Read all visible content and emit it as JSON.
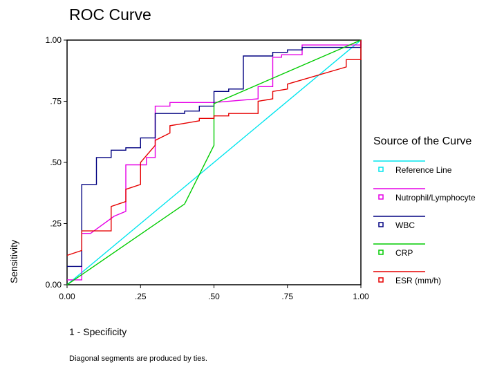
{
  "chart_data": {
    "type": "line",
    "title": "ROC Curve",
    "xlabel": "1 - Specificity",
    "ylabel": "Sensitivity",
    "footnote": "Diagonal segments are produced by ties.",
    "xlim": [
      0,
      1
    ],
    "ylim": [
      0,
      1
    ],
    "x_ticks": [
      {
        "value": 0.0,
        "label": "0.00"
      },
      {
        "value": 0.25,
        "label": ".25"
      },
      {
        "value": 0.5,
        "label": ".50"
      },
      {
        "value": 0.75,
        "label": ".75"
      },
      {
        "value": 1.0,
        "label": "1.00"
      }
    ],
    "y_ticks": [
      {
        "value": 0.0,
        "label": "0.00"
      },
      {
        "value": 0.25,
        "label": ".25"
      },
      {
        "value": 0.5,
        "label": ".50"
      },
      {
        "value": 0.75,
        "label": ".75"
      },
      {
        "value": 1.0,
        "label": "1.00"
      }
    ],
    "legend_title": "Source of the Curve",
    "legend_position": "right",
    "series": [
      {
        "name": "Reference Line",
        "color": "#00e5ee",
        "x": [
          0,
          1
        ],
        "y": [
          0,
          1
        ]
      },
      {
        "name": "Nutrophil/Lymphocyte",
        "color": "#e600e6",
        "x": [
          0,
          0.05,
          0.05,
          0.08,
          0.16,
          0.16,
          0.2,
          0.2,
          0.27,
          0.27,
          0.3,
          0.3,
          0.35,
          0.35,
          0.5,
          0.5,
          0.65,
          0.65,
          0.7,
          0.7,
          0.73,
          0.73,
          0.8,
          0.8,
          1,
          1
        ],
        "y": [
          0.02,
          0.02,
          0.21,
          0.21,
          0.28,
          0.28,
          0.3,
          0.49,
          0.49,
          0.52,
          0.52,
          0.73,
          0.73,
          0.745,
          0.745,
          0.745,
          0.76,
          0.81,
          0.81,
          0.93,
          0.93,
          0.94,
          0.94,
          0.98,
          0.98,
          1
        ]
      },
      {
        "name": "WBC",
        "color": "#000080",
        "x": [
          0,
          0.05,
          0.05,
          0.1,
          0.1,
          0.15,
          0.15,
          0.2,
          0.2,
          0.25,
          0.25,
          0.3,
          0.3,
          0.4,
          0.4,
          0.45,
          0.45,
          0.5,
          0.5,
          0.55,
          0.55,
          0.6,
          0.6,
          0.7,
          0.7,
          0.75,
          0.75,
          0.8,
          0.8,
          1,
          1
        ],
        "y": [
          0.075,
          0.075,
          0.41,
          0.41,
          0.52,
          0.52,
          0.55,
          0.55,
          0.56,
          0.56,
          0.6,
          0.6,
          0.7,
          0.7,
          0.71,
          0.71,
          0.73,
          0.73,
          0.79,
          0.79,
          0.8,
          0.8,
          0.935,
          0.935,
          0.95,
          0.95,
          0.96,
          0.96,
          0.97,
          0.97,
          1
        ]
      },
      {
        "name": "CRP",
        "color": "#00cc00",
        "x": [
          0,
          0.4,
          0.5,
          0.5,
          1
        ],
        "y": [
          0,
          0.33,
          0.57,
          0.74,
          1
        ]
      },
      {
        "name": "ESR (mm/h)",
        "color": "#e60000",
        "x": [
          0,
          0.05,
          0.05,
          0.15,
          0.15,
          0.2,
          0.2,
          0.25,
          0.25,
          0.3,
          0.3,
          0.35,
          0.35,
          0.4,
          0.4,
          0.45,
          0.45,
          0.5,
          0.5,
          0.55,
          0.55,
          0.65,
          0.65,
          0.7,
          0.7,
          0.75,
          0.75,
          0.95,
          0.95,
          1,
          1
        ],
        "y": [
          0.12,
          0.14,
          0.22,
          0.22,
          0.32,
          0.34,
          0.39,
          0.41,
          0.5,
          0.57,
          0.59,
          0.62,
          0.65,
          0.66,
          0.66,
          0.67,
          0.68,
          0.68,
          0.69,
          0.69,
          0.7,
          0.7,
          0.75,
          0.76,
          0.79,
          0.8,
          0.82,
          0.89,
          0.92,
          0.92,
          1
        ]
      }
    ]
  }
}
